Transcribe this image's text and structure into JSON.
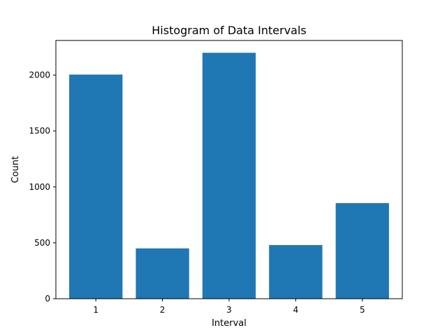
{
  "chart_data": {
    "type": "bar",
    "title": "Histogram of Data Intervals",
    "xlabel": "Interval",
    "ylabel": "Count",
    "categories": [
      "1",
      "2",
      "3",
      "4",
      "5"
    ],
    "values": [
      2005,
      450,
      2200,
      480,
      855
    ],
    "ylim": [
      0,
      2310
    ],
    "yticks": [
      0,
      500,
      1000,
      1500,
      2000
    ],
    "grid": false,
    "legend": "none",
    "bar_color": "#1f77b4"
  }
}
